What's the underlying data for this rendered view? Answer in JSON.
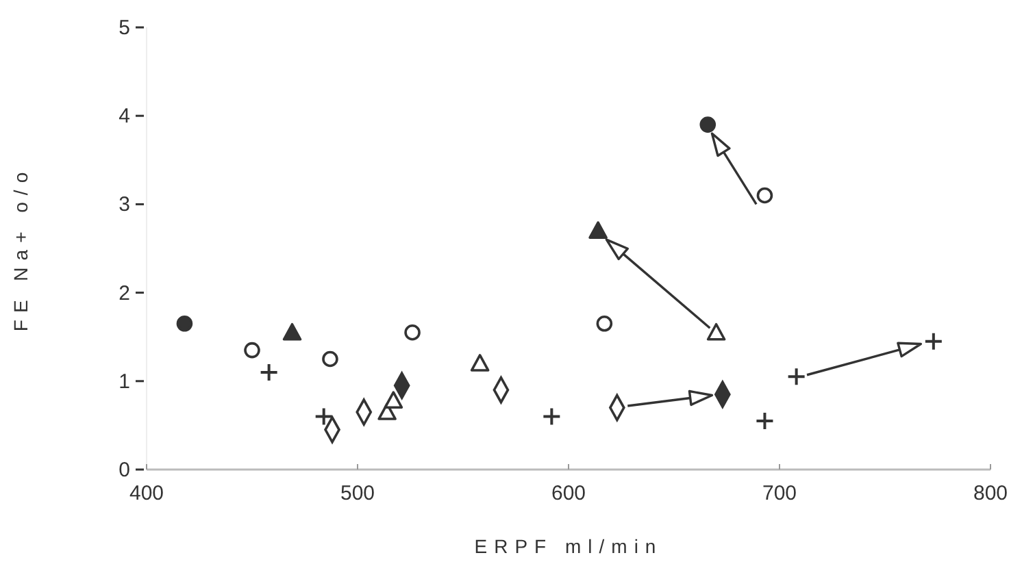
{
  "chart_data": {
    "type": "scatter",
    "xlabel": "ERPF ml/min",
    "ylabel": "FE Na+ o/o",
    "xlim": [
      400,
      800
    ],
    "xticks": [
      400,
      500,
      600,
      700,
      800
    ],
    "ylim": [
      0,
      5
    ],
    "yticks": [
      0,
      1,
      2,
      3,
      4,
      5
    ],
    "series": [
      {
        "marker": "circle",
        "color": "#333333",
        "x": [
          418,
          666
        ],
        "values": [
          1.65,
          3.9
        ]
      },
      {
        "marker": "circle",
        "color": "#ffffff",
        "x": [
          450,
          487,
          526,
          617,
          693
        ],
        "values": [
          1.35,
          1.25,
          1.55,
          1.65,
          3.1
        ]
      },
      {
        "marker": "triangle",
        "color": "#333333",
        "x": [
          469,
          614
        ],
        "values": [
          1.55,
          2.7
        ]
      },
      {
        "marker": "triangle",
        "color": "#ffffff",
        "x": [
          514,
          517,
          558,
          670
        ],
        "values": [
          0.65,
          0.78,
          1.2,
          1.55
        ]
      },
      {
        "marker": "diamond",
        "color": "#333333",
        "x": [
          521,
          673
        ],
        "values": [
          0.95,
          0.85
        ]
      },
      {
        "marker": "diamond",
        "color": "#ffffff",
        "x": [
          488,
          503,
          568,
          623
        ],
        "values": [
          0.45,
          0.65,
          0.9,
          0.7
        ]
      },
      {
        "marker": "cross",
        "color": "#333333",
        "x": [
          458,
          484,
          592,
          693,
          708,
          773
        ],
        "values": [
          1.1,
          0.6,
          0.6,
          0.55,
          1.05,
          1.45
        ]
      }
    ]
  }
}
